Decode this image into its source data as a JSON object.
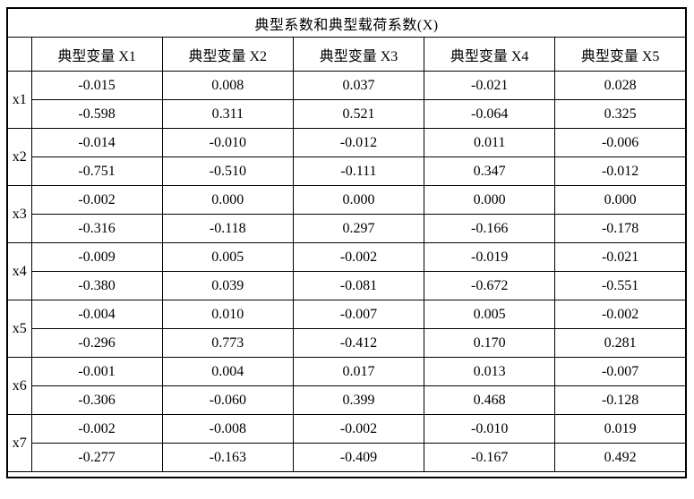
{
  "table": {
    "title": "典型系数和典型载荷系数(X)",
    "headers": [
      "典型变量 X1",
      "典型变量 X2",
      "典型变量 X3",
      "典型变量 X4",
      "典型变量 X5"
    ],
    "groups": [
      {
        "label": "x1",
        "rows": [
          [
            "-0.015",
            "0.008",
            "0.037",
            "-0.021",
            "0.028"
          ],
          [
            "-0.598",
            "0.311",
            "0.521",
            "-0.064",
            "0.325"
          ]
        ]
      },
      {
        "label": "x2",
        "rows": [
          [
            "-0.014",
            "-0.010",
            "-0.012",
            "0.011",
            "-0.006"
          ],
          [
            "-0.751",
            "-0.510",
            "-0.111",
            "0.347",
            "-0.012"
          ]
        ]
      },
      {
        "label": "x3",
        "rows": [
          [
            "-0.002",
            "0.000",
            "0.000",
            "0.000",
            "0.000"
          ],
          [
            "-0.316",
            "-0.118",
            "0.297",
            "-0.166",
            "-0.178"
          ]
        ]
      },
      {
        "label": "x4",
        "rows": [
          [
            "-0.009",
            "0.005",
            "-0.002",
            "-0.019",
            "-0.021"
          ],
          [
            "-0.380",
            "0.039",
            "-0.081",
            "-0.672",
            "-0.551"
          ]
        ]
      },
      {
        "label": "x5",
        "rows": [
          [
            "-0.004",
            "0.010",
            "-0.007",
            "0.005",
            "-0.002"
          ],
          [
            "-0.296",
            "0.773",
            "-0.412",
            "0.170",
            "0.281"
          ]
        ]
      },
      {
        "label": "x6",
        "rows": [
          [
            "-0.001",
            "0.004",
            "0.017",
            "0.013",
            "-0.007"
          ],
          [
            "-0.306",
            "-0.060",
            "0.399",
            "0.468",
            "-0.128"
          ]
        ]
      },
      {
        "label": "x7",
        "rows": [
          [
            "-0.002",
            "-0.008",
            "-0.002",
            "-0.010",
            "0.019"
          ],
          [
            "-0.277",
            "-0.163",
            "-0.409",
            "-0.167",
            "0.492"
          ]
        ]
      }
    ]
  }
}
